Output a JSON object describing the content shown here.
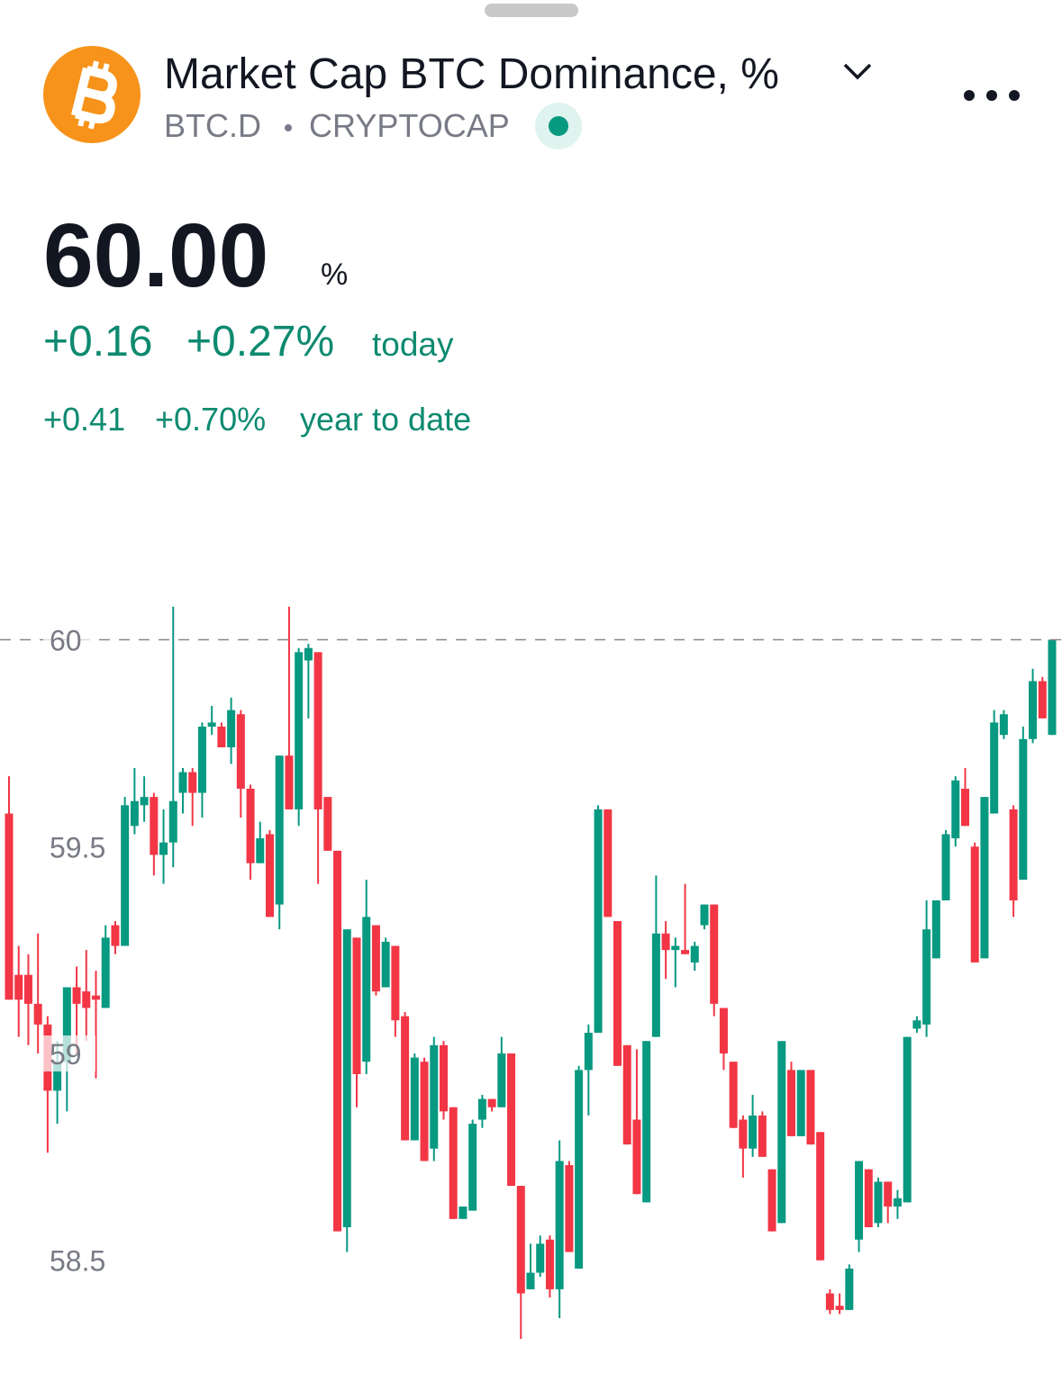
{
  "header": {
    "title": "Market Cap BTC Dominance, %",
    "symbol": "BTC.D",
    "exchange": "CRYPTOCAP",
    "price": "60.00",
    "unit": "%",
    "change": "+0.16",
    "change_pct": "+0.27%",
    "change_period": "today",
    "ytd_change": "+0.41",
    "ytd_pct": "+0.70%",
    "ytd_period": "year to date"
  },
  "chart_data": {
    "type": "candlestick",
    "up_color": "#089981",
    "down_color": "#f23645",
    "ylim": [
      58.26,
      60.11
    ],
    "yticks": [
      58.5,
      59,
      59.5,
      60
    ],
    "grid": false,
    "open": [
      59.58,
      59.19,
      59.19,
      59.12,
      59.07,
      58.91,
      58.98,
      59.16,
      59.15,
      59.14,
      59.11,
      59.31,
      59.26,
      59.55,
      59.6,
      59.62,
      59.48,
      59.51,
      59.63,
      59.68,
      59.63,
      59.79,
      59.79,
      59.74,
      59.82,
      59.64,
      59.46,
      59.53,
      59.36,
      59.72,
      59.59,
      59.95,
      59.97,
      59.62,
      59.49,
      58.58,
      59.28,
      58.98,
      59.31,
      59.16,
      59.26,
      59.09,
      58.79,
      58.98,
      58.77,
      59.02,
      58.87,
      58.6,
      58.62,
      58.84,
      58.89,
      58.87,
      59.0,
      58.68,
      58.43,
      58.47,
      58.55,
      58.43,
      58.73,
      58.48,
      58.96,
      59.05,
      59.59,
      59.32,
      59.02,
      58.84,
      58.64,
      59.04,
      59.29,
      59.25,
      59.25,
      59.22,
      59.31,
      59.36,
      59.11,
      58.98,
      58.84,
      58.77,
      58.85,
      58.72,
      58.59,
      58.96,
      58.8,
      58.96,
      58.81,
      58.42,
      58.39,
      58.38,
      58.55,
      58.72,
      58.59,
      58.69,
      58.63,
      58.64,
      59.06,
      59.07,
      59.23,
      59.37,
      59.52,
      59.64,
      59.5,
      59.23,
      59.58,
      59.77,
      59.59,
      59.42,
      59.76,
      59.9,
      59.77
    ],
    "high": [
      59.67,
      59.26,
      59.24,
      59.29,
      59.09,
      59.03,
      59.16,
      59.21,
      59.25,
      59.2,
      59.31,
      59.32,
      59.62,
      59.69,
      59.67,
      59.63,
      59.59,
      60.08,
      59.69,
      59.69,
      59.8,
      59.84,
      59.8,
      59.86,
      59.83,
      59.65,
      59.56,
      59.54,
      59.72,
      60.08,
      59.98,
      59.99,
      59.97,
      59.62,
      59.49,
      59.3,
      59.28,
      59.42,
      59.31,
      59.28,
      59.26,
      59.1,
      59.0,
      58.99,
      59.04,
      59.03,
      58.87,
      58.63,
      58.84,
      58.9,
      58.89,
      59.04,
      59.0,
      58.68,
      58.54,
      58.56,
      58.56,
      58.79,
      58.74,
      58.97,
      59.07,
      59.6,
      59.59,
      59.32,
      59.02,
      59.01,
      59.03,
      59.43,
      59.32,
      59.28,
      59.41,
      59.27,
      59.36,
      59.36,
      59.11,
      58.98,
      58.85,
      58.9,
      58.86,
      58.72,
      59.03,
      58.98,
      58.96,
      58.96,
      58.81,
      58.43,
      58.42,
      58.49,
      58.74,
      58.72,
      58.7,
      58.69,
      58.67,
      59.04,
      59.09,
      59.37,
      59.37,
      59.54,
      59.67,
      59.69,
      59.51,
      59.62,
      59.83,
      59.83,
      59.6,
      59.79,
      59.93,
      59.91,
      60.0
    ],
    "low": [
      59.13,
      59.04,
      59.02,
      59.0,
      58.76,
      58.83,
      58.86,
      59.0,
      59.03,
      58.94,
      59.11,
      59.24,
      59.26,
      59.53,
      59.56,
      59.43,
      59.41,
      59.45,
      59.58,
      59.55,
      59.57,
      59.77,
      59.74,
      59.7,
      59.57,
      59.42,
      59.46,
      59.33,
      59.3,
      59.59,
      59.55,
      59.81,
      59.41,
      59.49,
      58.57,
      58.52,
      58.87,
      58.95,
      59.14,
      59.16,
      59.04,
      58.79,
      58.79,
      58.74,
      58.74,
      58.84,
      58.6,
      58.6,
      58.62,
      58.82,
      58.86,
      58.87,
      58.68,
      58.31,
      58.43,
      58.46,
      58.41,
      58.36,
      58.52,
      58.48,
      58.85,
      59.05,
      59.33,
      58.97,
      58.78,
      58.66,
      58.64,
      59.04,
      59.18,
      59.16,
      59.24,
      59.2,
      59.3,
      59.09,
      58.96,
      58.82,
      58.7,
      58.75,
      58.75,
      58.57,
      58.59,
      58.8,
      58.8,
      58.78,
      58.5,
      58.37,
      58.37,
      58.38,
      58.52,
      58.58,
      58.58,
      58.59,
      58.6,
      58.64,
      59.05,
      59.04,
      59.23,
      59.37,
      59.5,
      59.55,
      59.22,
      59.23,
      59.58,
      59.76,
      59.33,
      59.42,
      59.75,
      59.81,
      59.77
    ],
    "close": [
      59.13,
      59.13,
      59.12,
      59.07,
      58.91,
      58.98,
      59.16,
      59.12,
      59.11,
      59.13,
      59.28,
      59.26,
      59.6,
      59.61,
      59.62,
      59.48,
      59.51,
      59.61,
      59.68,
      59.63,
      59.79,
      59.8,
      59.74,
      59.83,
      59.64,
      59.46,
      59.52,
      59.33,
      59.72,
      59.59,
      59.97,
      59.98,
      59.59,
      59.49,
      58.57,
      59.3,
      58.95,
      59.33,
      59.15,
      59.27,
      59.08,
      58.79,
      58.99,
      58.74,
      59.02,
      58.86,
      58.6,
      58.63,
      58.83,
      58.89,
      58.87,
      59.0,
      58.68,
      58.42,
      58.47,
      58.54,
      58.43,
      58.74,
      58.52,
      58.96,
      59.05,
      59.59,
      59.33,
      58.97,
      58.78,
      58.66,
      59.03,
      59.29,
      59.25,
      59.26,
      59.24,
      59.26,
      59.36,
      59.12,
      59.0,
      58.82,
      58.77,
      58.85,
      58.75,
      58.57,
      59.03,
      58.8,
      58.96,
      58.78,
      58.5,
      58.38,
      58.38,
      58.48,
      58.74,
      58.58,
      58.69,
      58.63,
      58.65,
      59.04,
      59.08,
      59.3,
      59.37,
      59.53,
      59.66,
      59.55,
      59.22,
      59.62,
      59.8,
      59.82,
      59.37,
      59.76,
      59.9,
      59.81,
      60.0
    ]
  }
}
